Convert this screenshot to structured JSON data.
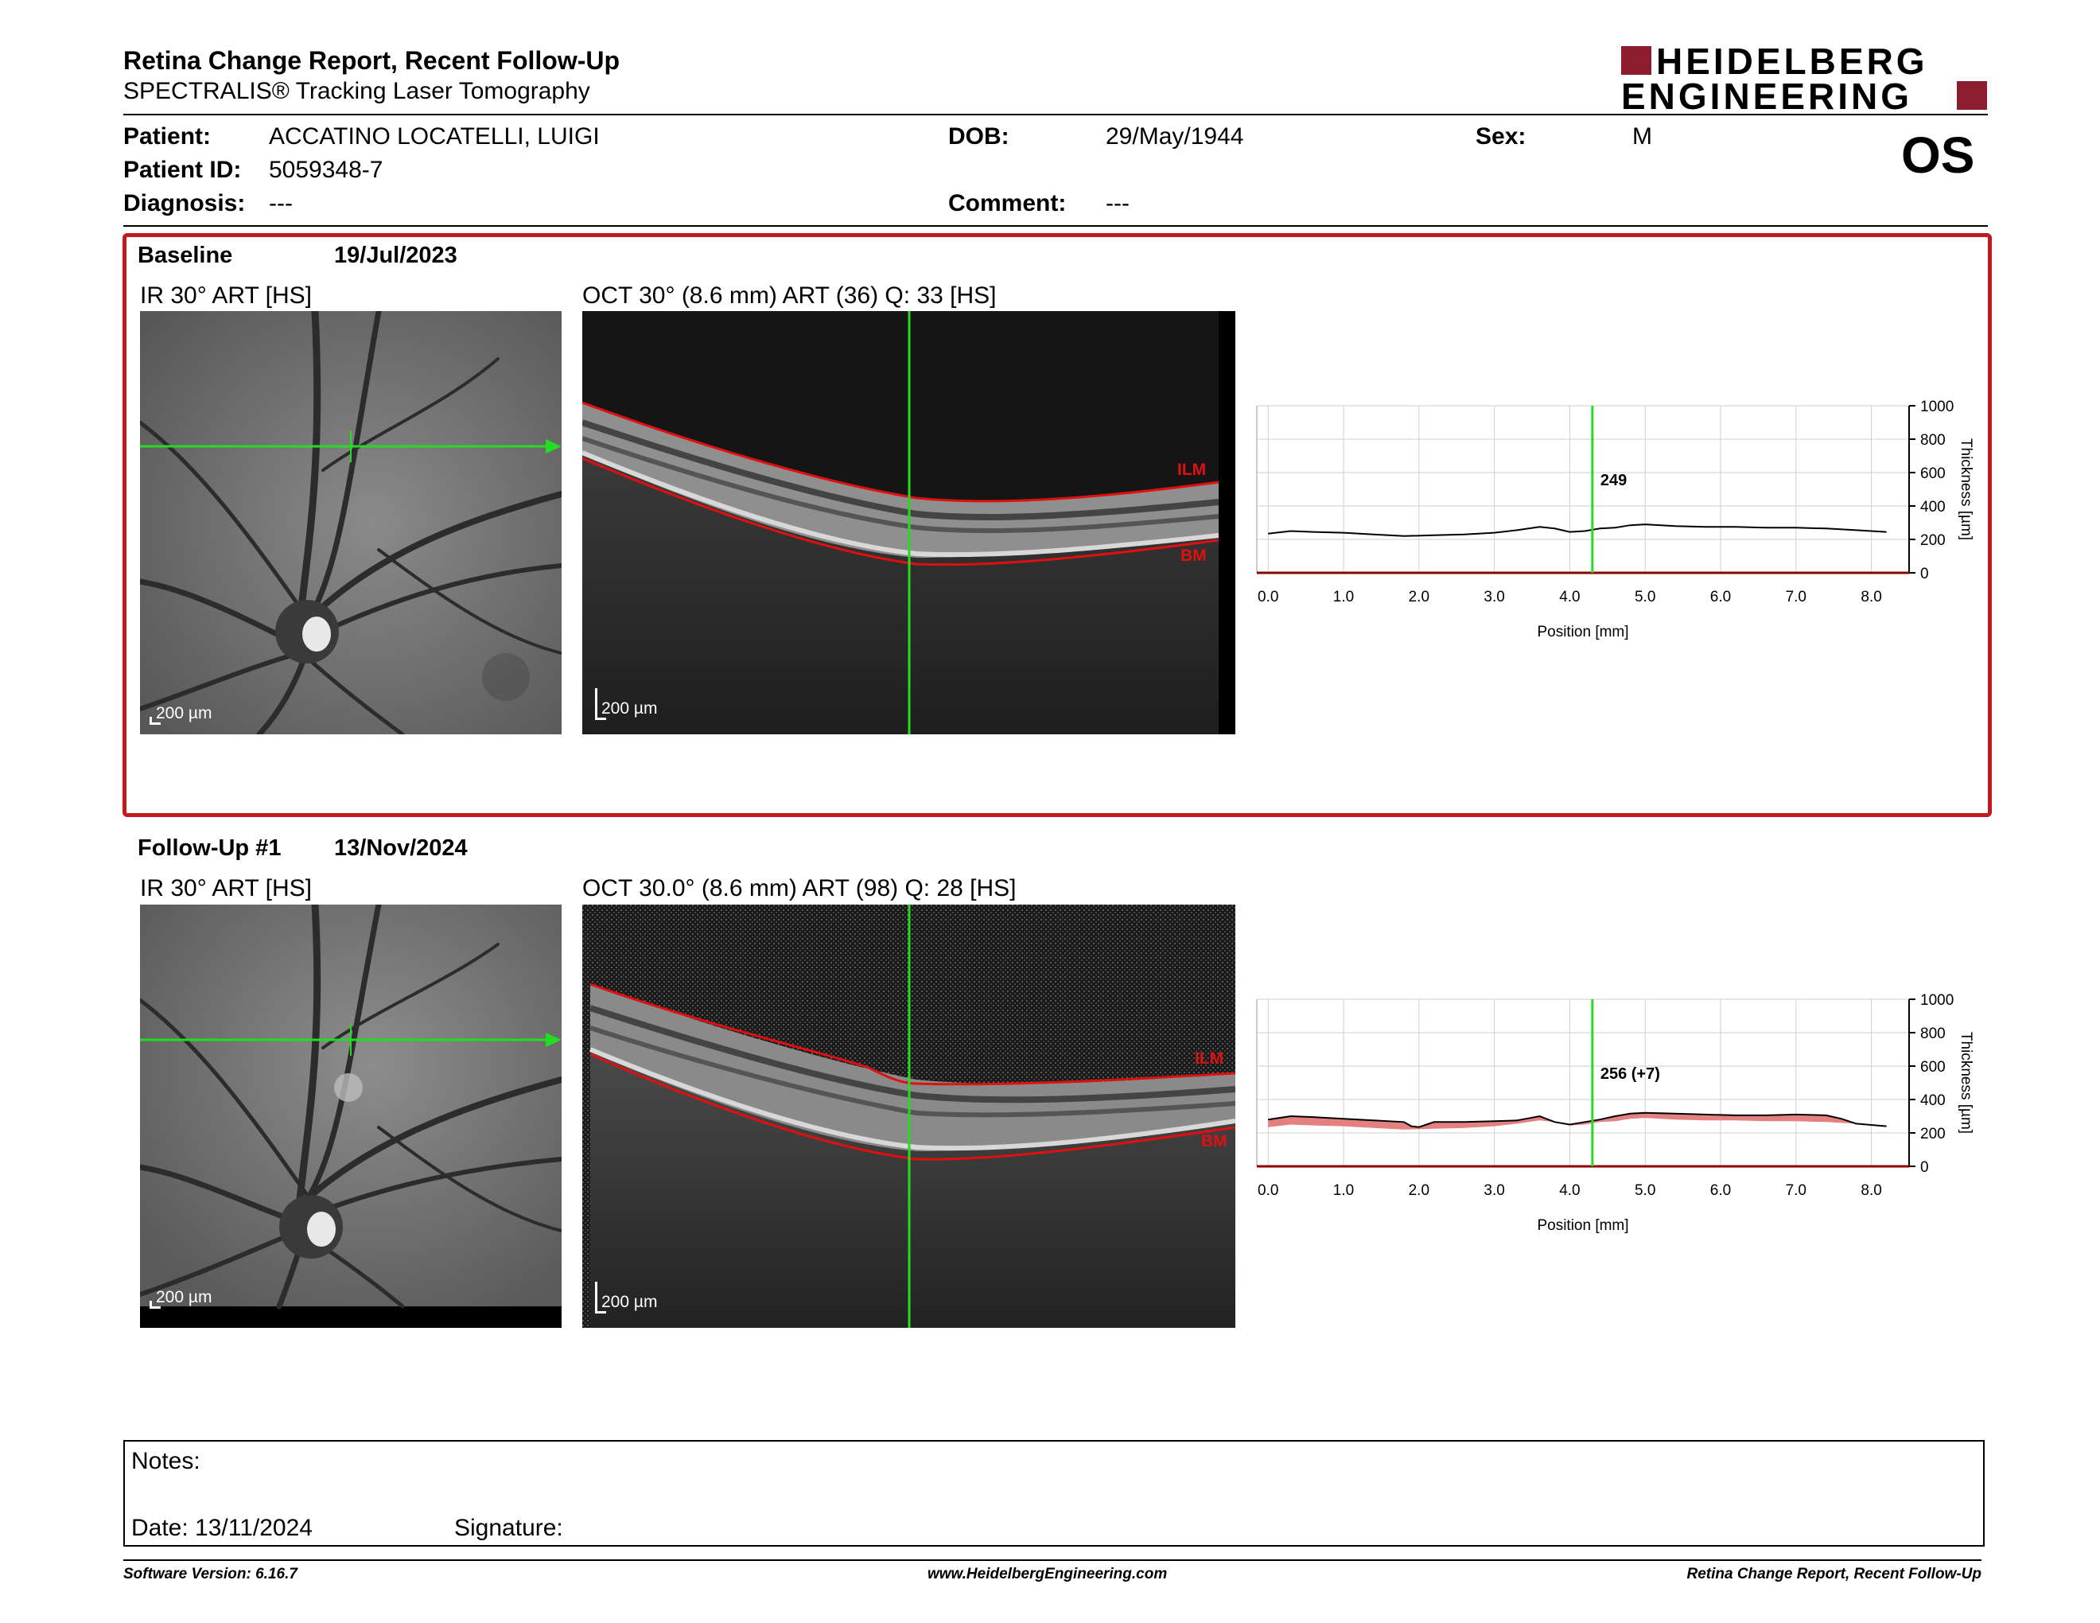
{
  "header": {
    "title": "Retina Change Report, Recent Follow-Up",
    "subtitle": "SPECTRALIS® Tracking Laser Tomography",
    "logo_line1": "HEIDELBERG",
    "logo_line2": "ENGINEERING"
  },
  "patient": {
    "name_label": "Patient:",
    "name": "ACCATINO LOCATELLI, LUIGI",
    "id_label": "Patient ID:",
    "id": "5059348-7",
    "diagnosis_label": "Diagnosis:",
    "diagnosis": "---",
    "dob_label": "DOB:",
    "dob": "29/May/1944",
    "comment_label": "Comment:",
    "comment": "---",
    "sex_label": "Sex:",
    "sex": "M",
    "eye": "OS"
  },
  "baseline": {
    "label": "Baseline",
    "date": "19/Jul/2023",
    "ir_title": "IR 30° ART [HS]",
    "oct_title": "OCT 30° (8.6 mm) ART (36) Q: 33 [HS]",
    "scale_ir": "200 µm",
    "scale_oct": "200 µm",
    "ilm": "ILM",
    "bm": "BM",
    "value_label": "249"
  },
  "followup": {
    "label": "Follow-Up #1",
    "date": "13/Nov/2024",
    "ir_title": "IR 30° ART [HS]",
    "oct_title": "OCT 30.0° (8.6 mm) ART (98) Q: 28 [HS]",
    "scale_ir": "200 µm",
    "scale_oct": "200 µm",
    "ilm": "ILM",
    "bm": "BM",
    "value_label": "256 (+7)"
  },
  "chart_axes": {
    "xlabel": "Position [mm]",
    "ylabel": "Thickness [µm]",
    "x_ticks": [
      "0.0",
      "1.0",
      "2.0",
      "3.0",
      "4.0",
      "5.0",
      "6.0",
      "7.0",
      "8.0"
    ],
    "y_ticks": [
      "1000",
      "800",
      "600",
      "400",
      "200",
      "0"
    ]
  },
  "chart_data": [
    {
      "type": "line",
      "xlabel": "Position [mm]",
      "ylabel": "Thickness [µm]",
      "xlim": [
        -0.15,
        8.5
      ],
      "ylim": [
        0,
        1000
      ],
      "cursor_x": 4.3,
      "annotation": "249",
      "series": [
        {
          "x": [
            0.0,
            0.3,
            0.6,
            1.0,
            1.4,
            1.8,
            2.2,
            2.6,
            3.0,
            3.3,
            3.6,
            3.8,
            4.0,
            4.2,
            4.4,
            4.6,
            4.8,
            5.0,
            5.4,
            5.8,
            6.2,
            6.6,
            7.0,
            7.4,
            7.8,
            8.2
          ],
          "values": [
            235,
            250,
            245,
            240,
            230,
            220,
            225,
            230,
            240,
            255,
            275,
            265,
            245,
            250,
            265,
            270,
            285,
            290,
            280,
            275,
            275,
            270,
            270,
            265,
            255,
            245
          ]
        }
      ]
    },
    {
      "type": "line",
      "xlabel": "Position [mm]",
      "ylabel": "Thickness [µm]",
      "xlim": [
        -0.15,
        8.5
      ],
      "ylim": [
        0,
        1000
      ],
      "cursor_x": 4.3,
      "annotation": "256 (+7)",
      "series": [
        {
          "x": [
            0.0,
            0.3,
            0.6,
            1.0,
            1.4,
            1.8,
            1.9,
            2.0,
            2.2,
            2.6,
            3.0,
            3.3,
            3.6,
            3.8,
            4.0,
            4.2,
            4.4,
            4.6,
            4.8,
            5.0,
            5.4,
            5.8,
            6.2,
            6.6,
            7.0,
            7.4,
            7.6,
            7.8,
            8.2
          ],
          "values": [
            280,
            300,
            295,
            285,
            275,
            265,
            240,
            235,
            265,
            265,
            270,
            275,
            300,
            265,
            250,
            265,
            280,
            300,
            315,
            320,
            315,
            310,
            305,
            305,
            310,
            305,
            285,
            255,
            240
          ]
        },
        {
          "x": [
            0.0,
            0.3,
            0.6,
            1.0,
            1.4,
            1.8,
            2.2,
            2.6,
            3.0,
            3.3,
            3.6,
            3.8,
            4.0,
            4.2,
            4.4,
            4.6,
            4.8,
            5.0,
            5.4,
            5.8,
            6.2,
            6.6,
            7.0,
            7.4,
            7.8,
            8.2
          ],
          "values": [
            235,
            250,
            245,
            240,
            230,
            220,
            225,
            230,
            240,
            255,
            275,
            265,
            245,
            250,
            265,
            270,
            285,
            290,
            280,
            275,
            275,
            270,
            270,
            265,
            255,
            245
          ]
        }
      ]
    }
  ],
  "notes": {
    "label": "Notes:",
    "date_label": "Date: 13/11/2024",
    "signature_label": "Signature:"
  },
  "footer": {
    "software": "Software Version: 6.16.7",
    "website": "www.HeidelbergEngineering.com",
    "report": "Retina Change Report, Recent Follow-Up"
  }
}
